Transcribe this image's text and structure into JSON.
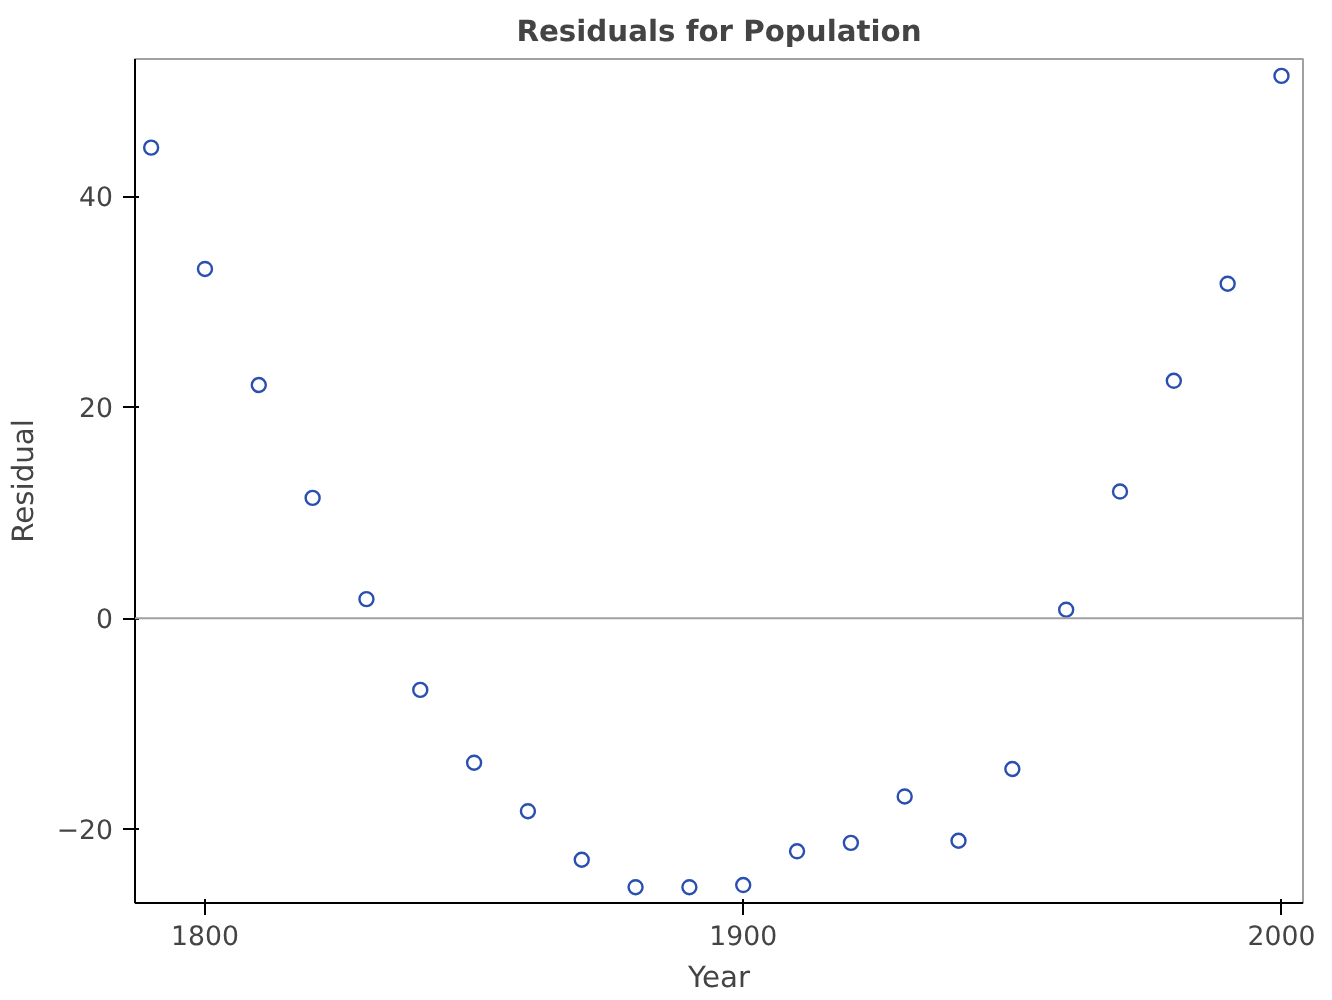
{
  "chart_data": {
    "type": "scatter",
    "title": "Residuals for Population",
    "xlabel": "Year",
    "ylabel": "Residual",
    "x": [
      1790,
      1800,
      1810,
      1820,
      1830,
      1840,
      1850,
      1860,
      1870,
      1880,
      1890,
      1900,
      1910,
      1920,
      1930,
      1940,
      1950,
      1960,
      1970,
      1980,
      1990,
      2000
    ],
    "series": [
      {
        "color": "#2a4fb0",
        "values": [
          44.6,
          33.1,
          22.1,
          11.4,
          1.8,
          -6.8,
          -13.7,
          -18.3,
          -22.9,
          -25.5,
          -25.5,
          -25.3,
          -22.1,
          -21.3,
          -16.9,
          -21.1,
          -14.3,
          0.8,
          12.0,
          22.5,
          31.7,
          51.4
        ]
      }
    ],
    "xlim": [
      1787,
      2004
    ],
    "ylim": [
      -27,
      53
    ],
    "xticks": [
      1800,
      1900,
      2000
    ],
    "yticks": [
      -20,
      0,
      20,
      40
    ],
    "ref_lines": [
      {
        "axis": "y",
        "value": 0,
        "color": "#a0a0a0"
      }
    ],
    "marker": "circle",
    "grid": false
  }
}
